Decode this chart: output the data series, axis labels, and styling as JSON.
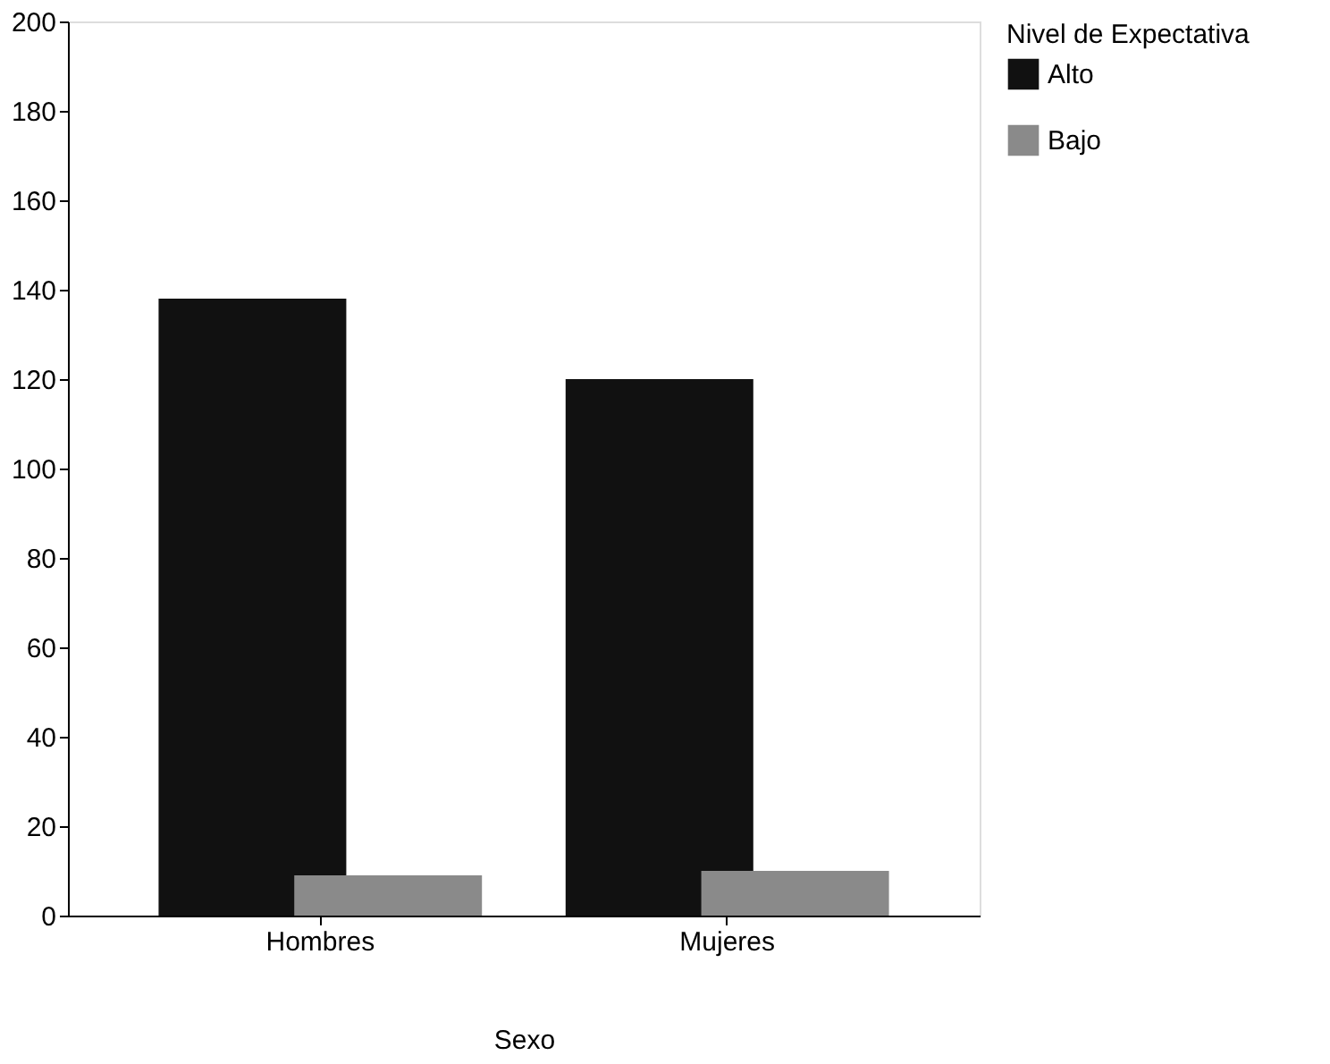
{
  "chart_data": {
    "type": "bar",
    "xlabel": "Sexo",
    "legend_title": "Nivel de Expectativa",
    "categories": [
      "Hombres",
      "Mujeres"
    ],
    "series": [
      {
        "name": "Alto",
        "color": "#111111",
        "values": [
          138,
          120
        ]
      },
      {
        "name": "Bajo",
        "color": "#8a8a8a",
        "values": [
          9,
          10
        ]
      }
    ],
    "ylim": [
      0,
      200
    ],
    "yticks": [
      0,
      20,
      40,
      60,
      80,
      100,
      120,
      140,
      160,
      180,
      200
    ],
    "grid": false,
    "legend": "right"
  }
}
